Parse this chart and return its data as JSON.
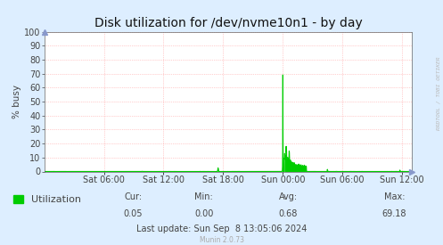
{
  "title": "Disk utilization for /dev/nvme10n1 - by day",
  "ylabel": "% busy",
  "background_color": "#ddeeff",
  "plot_bg_color": "#ffffff",
  "grid_color": "#ff9999",
  "line_color": "#00cc00",
  "fill_color": "#00cc00",
  "ylim": [
    0,
    100
  ],
  "yticks": [
    0,
    10,
    20,
    30,
    40,
    50,
    60,
    70,
    80,
    90,
    100
  ],
  "xtick_labels": [
    "Sat 06:00",
    "Sat 12:00",
    "Sat 18:00",
    "Sun 00:00",
    "Sun 06:00",
    "Sun 12:00"
  ],
  "legend_label": "Utilization",
  "cur_val": "0.05",
  "min_val": "0.00",
  "avg_val": "0.68",
  "max_val": "69.18",
  "last_update": "Last update: Sun Sep  8 13:05:06 2024",
  "munin_version": "Munin 2.0.73",
  "watermark": "RRDTOOL / TOBI OETIKER",
  "title_fontsize": 10,
  "axis_fontsize": 7,
  "legend_fontsize": 8,
  "stats_fontsize": 7
}
